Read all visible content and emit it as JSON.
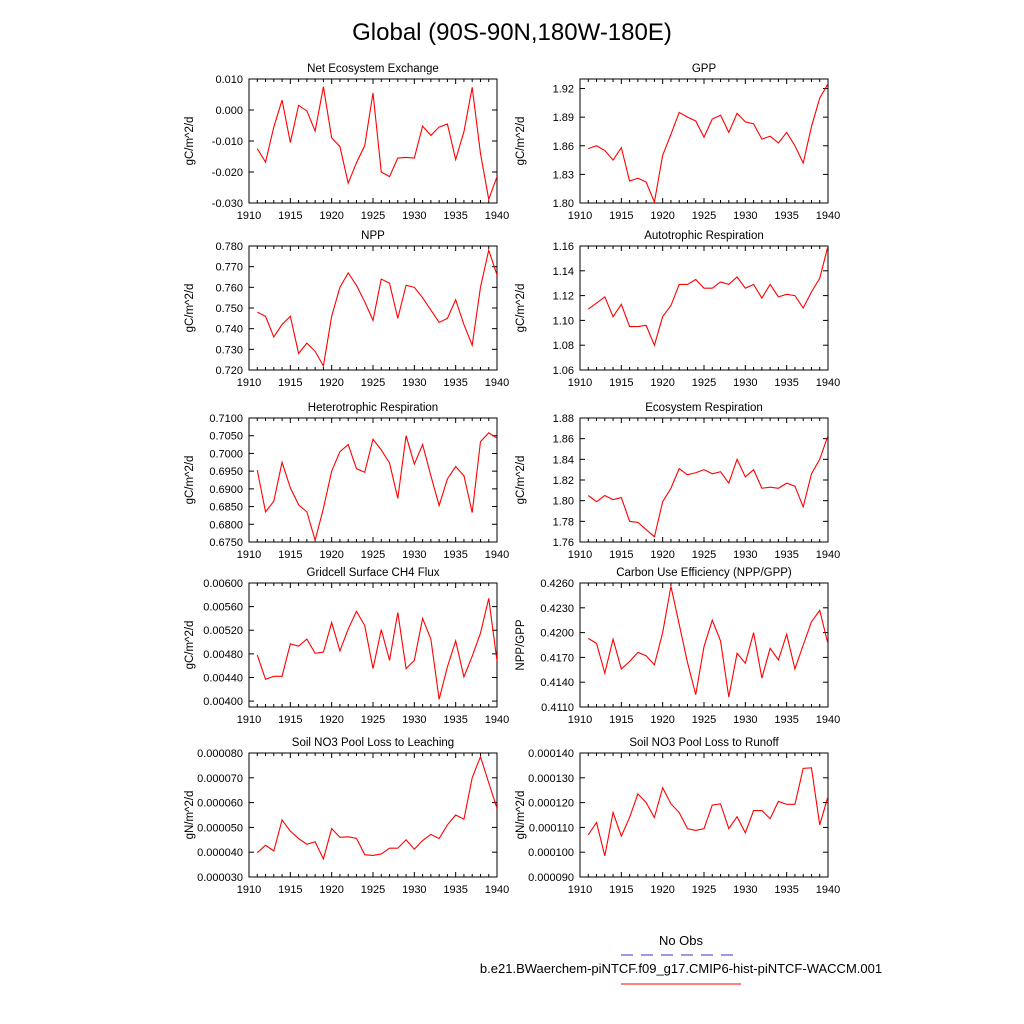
{
  "title": "Global (90S-90N,180W-180E)",
  "colors": {
    "model_line": "#ff0000",
    "obs_line": "#3333cc",
    "frame": "#000000"
  },
  "legend": {
    "obs_label": "No Obs",
    "model_label": "b.e21.BWaerchem-piNTCF.f09_g17.CMIP6-hist-piNTCF-WACCM.001"
  },
  "chart_data": [
    {
      "type": "line",
      "title": "Net Ecosystem Exchange",
      "ylabel": "gC/m^2/d",
      "xlim": [
        1910,
        1940
      ],
      "ylim": [
        -0.03,
        0.01
      ],
      "xticks": [
        "1910",
        "1915",
        "1920",
        "1925",
        "1930",
        "1935",
        "1940"
      ],
      "yticks": [
        [
          "-0.030",
          -0.03
        ],
        [
          "-0.020",
          -0.02
        ],
        [
          "-0.010",
          -0.01
        ],
        [
          "0.000",
          0.0
        ],
        [
          "0.010",
          0.01
        ]
      ],
      "x": [
        1911,
        1912,
        1913,
        1914,
        1915,
        1916,
        1917,
        1918,
        1919,
        1920,
        1921,
        1922,
        1923,
        1924,
        1925,
        1926,
        1927,
        1928,
        1929,
        1930,
        1931,
        1932,
        1933,
        1934,
        1935,
        1936,
        1937,
        1938,
        1939,
        1940
      ],
      "values": [
        -0.0125,
        -0.0168,
        -0.0055,
        0.0032,
        -0.0105,
        0.0015,
        -0.0003,
        -0.0068,
        0.0075,
        -0.009,
        -0.0118,
        -0.0236,
        -0.017,
        -0.0115,
        0.0055,
        -0.02,
        -0.0215,
        -0.0155,
        -0.0153,
        -0.0155,
        -0.0052,
        -0.0082,
        -0.0055,
        -0.0045,
        -0.016,
        -0.007,
        0.0073,
        -0.014,
        -0.0288,
        -0.0215
      ]
    },
    {
      "type": "line",
      "title": "GPP",
      "ylabel": "gC/m^2/d",
      "xlim": [
        1910,
        1940
      ],
      "ylim": [
        1.8,
        1.93
      ],
      "xticks": [
        "1910",
        "1915",
        "1920",
        "1925",
        "1930",
        "1935",
        "1940"
      ],
      "yticks": [
        [
          "1.80",
          1.8
        ],
        [
          "1.83",
          1.83
        ],
        [
          "1.86",
          1.86
        ],
        [
          "1.89",
          1.89
        ],
        [
          "1.92",
          1.92
        ]
      ],
      "x": [
        1911,
        1912,
        1913,
        1914,
        1915,
        1916,
        1917,
        1918,
        1919,
        1920,
        1921,
        1922,
        1923,
        1924,
        1925,
        1926,
        1927,
        1928,
        1929,
        1930,
        1931,
        1932,
        1933,
        1934,
        1935,
        1936,
        1937,
        1938,
        1939,
        1940
      ],
      "values": [
        1.857,
        1.86,
        1.855,
        1.845,
        1.858,
        1.823,
        1.826,
        1.822,
        1.801,
        1.85,
        1.872,
        1.895,
        1.89,
        1.886,
        1.869,
        1.888,
        1.892,
        1.874,
        1.894,
        1.885,
        1.883,
        1.867,
        1.87,
        1.863,
        1.874,
        1.86,
        1.842,
        1.88,
        1.91,
        1.925
      ]
    },
    {
      "type": "line",
      "title": "NPP",
      "ylabel": "gC/m^2/d",
      "xlim": [
        1910,
        1940
      ],
      "ylim": [
        0.72,
        0.78
      ],
      "xticks": [
        "1910",
        "1915",
        "1920",
        "1925",
        "1930",
        "1935",
        "1940"
      ],
      "yticks": [
        [
          "0.720",
          0.72
        ],
        [
          "0.730",
          0.73
        ],
        [
          "0.740",
          0.74
        ],
        [
          "0.750",
          0.75
        ],
        [
          "0.760",
          0.76
        ],
        [
          "0.770",
          0.77
        ],
        [
          "0.780",
          0.78
        ]
      ],
      "x": [
        1911,
        1912,
        1913,
        1914,
        1915,
        1916,
        1917,
        1918,
        1919,
        1920,
        1921,
        1922,
        1923,
        1924,
        1925,
        1926,
        1927,
        1928,
        1929,
        1930,
        1931,
        1932,
        1933,
        1934,
        1935,
        1936,
        1937,
        1938,
        1939,
        1940
      ],
      "values": [
        0.748,
        0.746,
        0.736,
        0.742,
        0.746,
        0.728,
        0.733,
        0.729,
        0.722,
        0.746,
        0.76,
        0.767,
        0.761,
        0.753,
        0.744,
        0.764,
        0.762,
        0.745,
        0.761,
        0.76,
        0.755,
        0.749,
        0.743,
        0.745,
        0.754,
        0.742,
        0.732,
        0.76,
        0.778,
        0.766
      ]
    },
    {
      "type": "line",
      "title": "Autotrophic Respiration",
      "ylabel": "gC/m^2/d",
      "xlim": [
        1910,
        1940
      ],
      "ylim": [
        1.06,
        1.16
      ],
      "xticks": [
        "1910",
        "1915",
        "1920",
        "1925",
        "1930",
        "1935",
        "1940"
      ],
      "yticks": [
        [
          "1.06",
          1.06
        ],
        [
          "1.08",
          1.08
        ],
        [
          "1.10",
          1.1
        ],
        [
          "1.12",
          1.12
        ],
        [
          "1.14",
          1.14
        ],
        [
          "1.16",
          1.16
        ]
      ],
      "x": [
        1911,
        1912,
        1913,
        1914,
        1915,
        1916,
        1917,
        1918,
        1919,
        1920,
        1921,
        1922,
        1923,
        1924,
        1925,
        1926,
        1927,
        1928,
        1929,
        1930,
        1931,
        1932,
        1933,
        1934,
        1935,
        1936,
        1937,
        1938,
        1939,
        1940
      ],
      "values": [
        1.109,
        1.114,
        1.119,
        1.103,
        1.113,
        1.095,
        1.095,
        1.096,
        1.08,
        1.103,
        1.112,
        1.129,
        1.129,
        1.133,
        1.126,
        1.126,
        1.131,
        1.129,
        1.135,
        1.126,
        1.129,
        1.118,
        1.129,
        1.119,
        1.121,
        1.12,
        1.11,
        1.123,
        1.134,
        1.16
      ]
    },
    {
      "type": "line",
      "title": "Heterotrophic Respiration",
      "ylabel": "gC/m^2/d",
      "xlim": [
        1910,
        1940
      ],
      "ylim": [
        0.675,
        0.71
      ],
      "xticks": [
        "1910",
        "1915",
        "1920",
        "1925",
        "1930",
        "1935",
        "1940"
      ],
      "yticks": [
        [
          "0.6750",
          0.675
        ],
        [
          "0.6800",
          0.68
        ],
        [
          "0.6850",
          0.685
        ],
        [
          "0.6900",
          0.69
        ],
        [
          "0.6950",
          0.695
        ],
        [
          "0.7000",
          0.7
        ],
        [
          "0.7050",
          0.705
        ],
        [
          "0.7100",
          0.71
        ]
      ],
      "x": [
        1911,
        1912,
        1913,
        1914,
        1915,
        1916,
        1917,
        1918,
        1919,
        1920,
        1921,
        1922,
        1923,
        1924,
        1925,
        1926,
        1927,
        1928,
        1929,
        1930,
        1931,
        1932,
        1933,
        1934,
        1935,
        1936,
        1937,
        1938,
        1939,
        1940
      ],
      "values": [
        0.6953,
        0.6835,
        0.6865,
        0.6975,
        0.6903,
        0.6855,
        0.6835,
        0.6755,
        0.6845,
        0.695,
        0.7005,
        0.7025,
        0.6957,
        0.6947,
        0.704,
        0.701,
        0.6973,
        0.6873,
        0.705,
        0.697,
        0.7025,
        0.6937,
        0.6853,
        0.6928,
        0.6963,
        0.6937,
        0.6833,
        0.7033,
        0.7058,
        0.7043
      ]
    },
    {
      "type": "line",
      "title": "Ecosystem Respiration",
      "ylabel": "gC/m^2/d",
      "xlim": [
        1910,
        1940
      ],
      "ylim": [
        1.76,
        1.88
      ],
      "xticks": [
        "1910",
        "1915",
        "1920",
        "1925",
        "1930",
        "1935",
        "1940"
      ],
      "yticks": [
        [
          "1.76",
          1.76
        ],
        [
          "1.78",
          1.78
        ],
        [
          "1.80",
          1.8
        ],
        [
          "1.82",
          1.82
        ],
        [
          "1.84",
          1.84
        ],
        [
          "1.86",
          1.86
        ],
        [
          "1.88",
          1.88
        ]
      ],
      "x": [
        1911,
        1912,
        1913,
        1914,
        1915,
        1916,
        1917,
        1918,
        1919,
        1920,
        1921,
        1922,
        1923,
        1924,
        1925,
        1926,
        1927,
        1928,
        1929,
        1930,
        1931,
        1932,
        1933,
        1934,
        1935,
        1936,
        1937,
        1938,
        1939,
        1940
      ],
      "values": [
        1.805,
        1.799,
        1.805,
        1.801,
        1.803,
        1.78,
        1.779,
        1.772,
        1.765,
        1.799,
        1.812,
        1.831,
        1.825,
        1.827,
        1.83,
        1.826,
        1.828,
        1.817,
        1.84,
        1.823,
        1.83,
        1.812,
        1.813,
        1.812,
        1.817,
        1.814,
        1.794,
        1.826,
        1.84,
        1.863
      ]
    },
    {
      "type": "line",
      "title": "Gridcell Surface CH4 Flux",
      "ylabel": "gC/m^2/d",
      "xlim": [
        1910,
        1940
      ],
      "ylim": [
        0.0039,
        0.006
      ],
      "xticks": [
        "1910",
        "1915",
        "1920",
        "1925",
        "1930",
        "1935",
        "1940"
      ],
      "yticks": [
        [
          "0.00400",
          0.004
        ],
        [
          "0.00440",
          0.0044
        ],
        [
          "0.00480",
          0.0048
        ],
        [
          "0.00520",
          0.0052
        ],
        [
          "0.00560",
          0.0056
        ],
        [
          "0.00600",
          0.006
        ]
      ],
      "x": [
        1911,
        1912,
        1913,
        1914,
        1915,
        1916,
        1917,
        1918,
        1919,
        1920,
        1921,
        1922,
        1923,
        1924,
        1925,
        1926,
        1927,
        1928,
        1929,
        1930,
        1931,
        1932,
        1933,
        1934,
        1935,
        1936,
        1937,
        1938,
        1939,
        1940
      ],
      "values": [
        0.00478,
        0.00437,
        0.00442,
        0.00442,
        0.00497,
        0.00493,
        0.00505,
        0.00481,
        0.00483,
        0.00533,
        0.00485,
        0.00522,
        0.00552,
        0.00528,
        0.00455,
        0.00521,
        0.00469,
        0.0055,
        0.00455,
        0.00469,
        0.0054,
        0.00505,
        0.00403,
        0.00458,
        0.00502,
        0.00441,
        0.00476,
        0.00515,
        0.00574,
        0.00468
      ]
    },
    {
      "type": "line",
      "title": "Carbon Use Efficiency (NPP/GPP)",
      "ylabel": "NPP/GPP",
      "xlim": [
        1910,
        1940
      ],
      "ylim": [
        0.411,
        0.426
      ],
      "xticks": [
        "1910",
        "1915",
        "1920",
        "1925",
        "1930",
        "1935",
        "1940"
      ],
      "yticks": [
        [
          "0.4110",
          0.411
        ],
        [
          "0.4140",
          0.414
        ],
        [
          "0.4170",
          0.417
        ],
        [
          "0.4200",
          0.42
        ],
        [
          "0.4230",
          0.423
        ],
        [
          "0.4260",
          0.426
        ]
      ],
      "x": [
        1911,
        1912,
        1913,
        1914,
        1915,
        1916,
        1917,
        1918,
        1919,
        1920,
        1921,
        1922,
        1923,
        1924,
        1925,
        1926,
        1927,
        1928,
        1929,
        1930,
        1931,
        1932,
        1933,
        1934,
        1935,
        1936,
        1937,
        1938,
        1939,
        1940
      ],
      "values": [
        0.4193,
        0.4187,
        0.4151,
        0.4192,
        0.4156,
        0.4165,
        0.4176,
        0.4172,
        0.4161,
        0.42,
        0.4256,
        0.421,
        0.4164,
        0.4125,
        0.4183,
        0.4215,
        0.419,
        0.4122,
        0.4175,
        0.4163,
        0.42,
        0.4145,
        0.4181,
        0.4167,
        0.4198,
        0.4156,
        0.4185,
        0.4213,
        0.4227,
        0.4186
      ]
    },
    {
      "type": "line",
      "title": "Soil NO3 Pool Loss to Leaching",
      "ylabel": "gN/m^2/d",
      "xlim": [
        1910,
        1940
      ],
      "ylim": [
        3e-05,
        8e-05
      ],
      "xticks": [
        "1910",
        "1915",
        "1920",
        "1925",
        "1930",
        "1935",
        "1940"
      ],
      "yticks": [
        [
          "0.000030",
          3e-05
        ],
        [
          "0.000040",
          4e-05
        ],
        [
          "0.000050",
          5e-05
        ],
        [
          "0.000060",
          6e-05
        ],
        [
          "0.000070",
          7e-05
        ],
        [
          "0.000080",
          8e-05
        ]
      ],
      "x": [
        1911,
        1912,
        1913,
        1914,
        1915,
        1916,
        1917,
        1918,
        1919,
        1920,
        1921,
        1922,
        1923,
        1924,
        1925,
        1926,
        1927,
        1928,
        1929,
        1930,
        1931,
        1932,
        1933,
        1934,
        1935,
        1936,
        1937,
        1938,
        1939,
        1940
      ],
      "values": [
        3.98e-05,
        4.28e-05,
        4.05e-05,
        5.3e-05,
        4.85e-05,
        4.55e-05,
        4.32e-05,
        4.42e-05,
        3.73e-05,
        4.95e-05,
        4.6e-05,
        4.62e-05,
        4.56e-05,
        3.9e-05,
        3.87e-05,
        3.93e-05,
        4.16e-05,
        4.16e-05,
        4.5e-05,
        4.12e-05,
        4.47e-05,
        4.72e-05,
        4.55e-05,
        5.1e-05,
        5.5e-05,
        5.33e-05,
        7e-05,
        7.85e-05,
        6.8e-05,
        5.77e-05
      ]
    },
    {
      "type": "line",
      "title": "Soil NO3 Pool Loss to Runoff",
      "ylabel": "gN/m^2/d",
      "xlim": [
        1910,
        1940
      ],
      "ylim": [
        9e-05,
        0.00014
      ],
      "xticks": [
        "1910",
        "1915",
        "1920",
        "1925",
        "1930",
        "1935",
        "1940"
      ],
      "yticks": [
        [
          "0.000090",
          9e-05
        ],
        [
          "0.000100",
          0.0001
        ],
        [
          "0.000110",
          0.00011
        ],
        [
          "0.000120",
          0.00012
        ],
        [
          "0.000130",
          0.00013
        ],
        [
          "0.000140",
          0.00014
        ]
      ],
      "x": [
        1911,
        1912,
        1913,
        1914,
        1915,
        1916,
        1917,
        1918,
        1919,
        1920,
        1921,
        1922,
        1923,
        1924,
        1925,
        1926,
        1927,
        1928,
        1929,
        1930,
        1931,
        1932,
        1933,
        1934,
        1935,
        1936,
        1937,
        1938,
        1939,
        1940
      ],
      "values": [
        0.000107,
        0.000112,
        9.85e-05,
        0.000116,
        0.0001065,
        0.000114,
        0.0001235,
        0.00012,
        0.000114,
        0.000126,
        0.0001195,
        0.000116,
        0.0001095,
        0.0001088,
        0.0001095,
        0.000119,
        0.0001195,
        0.0001095,
        0.0001143,
        0.0001078,
        0.0001168,
        0.0001168,
        0.0001135,
        0.0001205,
        0.0001193,
        0.0001193,
        0.0001338,
        0.000134,
        0.000111,
        0.0001225
      ]
    }
  ]
}
